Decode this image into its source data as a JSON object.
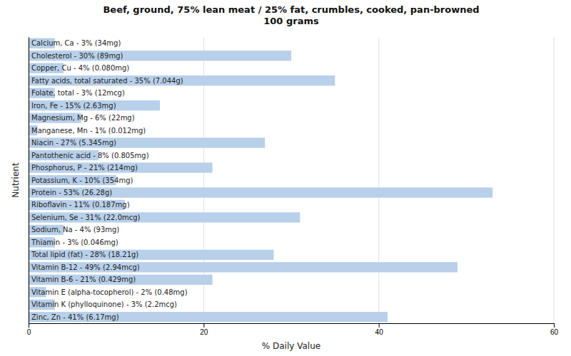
{
  "chart_data": {
    "type": "bar",
    "orientation": "horizontal",
    "title": "Beef, ground, 75% lean meat / 25% fat, crumbles, cooked, pan-browned\n100 grams",
    "xlabel": "% Daily Value",
    "ylabel": "Nutrient",
    "categories": [
      "Calcium, Ca - 3% (34mg)",
      "Cholesterol - 30% (89mg)",
      "Copper, Cu - 4% (0.080mg)",
      "Fatty acids, total saturated - 35% (7.044g)",
      "Folate, total - 3% (12mcg)",
      "Iron, Fe - 15% (2.63mg)",
      "Magnesium, Mg - 6% (22mg)",
      "Manganese, Mn - 1% (0.012mg)",
      "Niacin - 27% (5.345mg)",
      "Pantothenic acid - 8% (0.805mg)",
      "Phosphorus, P - 21% (214mg)",
      "Potassium, K - 10% (354mg)",
      "Protein - 53% (26.28g)",
      "Riboflavin - 11% (0.187mg)",
      "Selenium, Se - 31% (22.0mcg)",
      "Sodium, Na - 4% (93mg)",
      "Thiamin - 3% (0.046mg)",
      "Total lipid (fat) - 28% (18.21g)",
      "Vitamin B-12 - 49% (2.94mcg)",
      "Vitamin B-6 - 21% (0.429mg)",
      "Vitamin E (alpha-tocopherol) - 2% (0.48mg)",
      "Vitamin K (phylloquinone) - 3% (2.2mcg)",
      "Zinc, Zn - 41% (6.17mg)"
    ],
    "values": [
      3,
      30,
      4,
      35,
      3,
      15,
      6,
      1,
      27,
      8,
      21,
      10,
      53,
      11,
      31,
      4,
      3,
      28,
      49,
      21,
      2,
      3,
      41
    ],
    "color": "#b8d0ea",
    "xlim": [
      0,
      60
    ],
    "xticks": [
      0,
      20,
      40,
      60
    ],
    "grid": true,
    "tick_labels": "x"
  }
}
